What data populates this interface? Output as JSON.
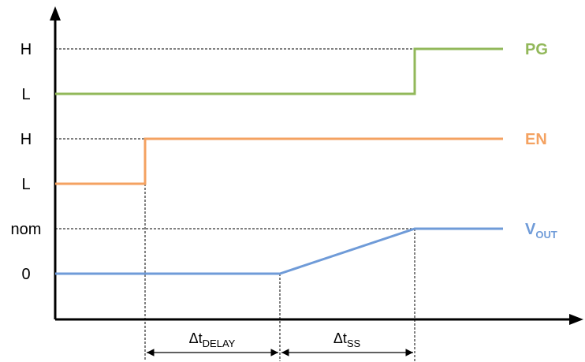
{
  "level_labels": {
    "pg_high": "H",
    "pg_low": "L",
    "en_high": "H",
    "en_low": "L",
    "vout_nom": "nom",
    "vout_zero": "0"
  },
  "signals": {
    "pg": {
      "name": "PG",
      "color": "#92b85a"
    },
    "en": {
      "name": "EN",
      "color": "#f4a261"
    },
    "vout": {
      "name": "V",
      "subscript": "OUT",
      "color": "#6f9bd8"
    }
  },
  "intervals": {
    "delay": {
      "symbol": "Δt",
      "subscript": "DELAY"
    },
    "soft_start": {
      "symbol": "Δt",
      "subscript": "SS"
    }
  }
}
